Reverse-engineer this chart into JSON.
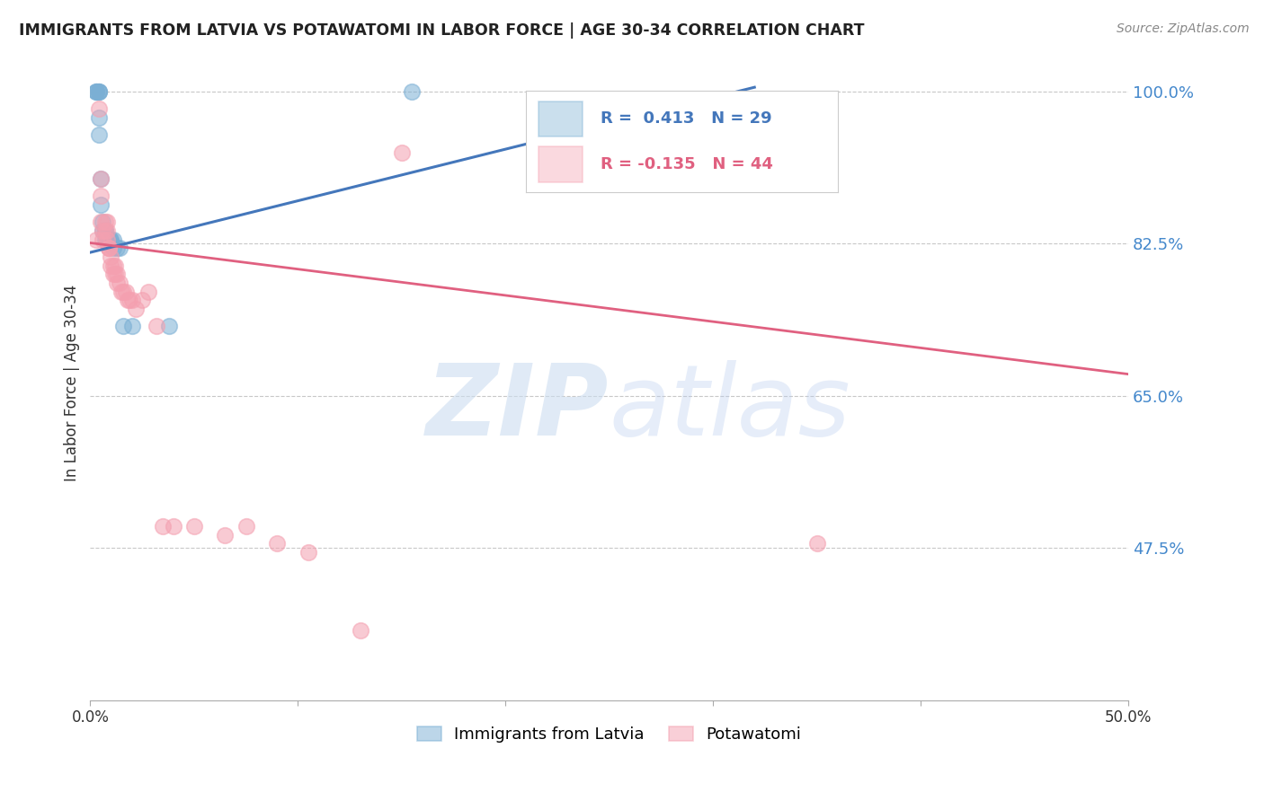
{
  "title": "IMMIGRANTS FROM LATVIA VS POTAWATOMI IN LABOR FORCE | AGE 30-34 CORRELATION CHART",
  "source": "Source: ZipAtlas.com",
  "ylabel": "In Labor Force | Age 30-34",
  "xlim": [
    0.0,
    0.5
  ],
  "ylim": [
    0.3,
    1.03
  ],
  "yticks": [
    0.475,
    0.65,
    0.825,
    1.0
  ],
  "ytick_labels": [
    "47.5%",
    "65.0%",
    "82.5%",
    "100.0%"
  ],
  "xticks": [
    0.0,
    0.1,
    0.2,
    0.3,
    0.4,
    0.5
  ],
  "xtick_labels": [
    "0.0%",
    "",
    "",
    "",
    "",
    "50.0%"
  ],
  "grid_color": "#c8c8c8",
  "background_color": "#ffffff",
  "blue_color": "#7bafd4",
  "pink_color": "#f4a0b0",
  "blue_line_color": "#4477bb",
  "pink_line_color": "#e06080",
  "legend_R_blue": "0.413",
  "legend_N_blue": "29",
  "legend_R_pink": "-0.135",
  "legend_N_pink": "44",
  "blue_scatter_x": [
    0.003,
    0.003,
    0.003,
    0.004,
    0.004,
    0.004,
    0.004,
    0.004,
    0.005,
    0.005,
    0.006,
    0.006,
    0.007,
    0.007,
    0.007,
    0.008,
    0.008,
    0.009,
    0.009,
    0.01,
    0.01,
    0.011,
    0.011,
    0.013,
    0.014,
    0.016,
    0.02,
    0.155,
    0.038
  ],
  "blue_scatter_y": [
    1.0,
    1.0,
    1.0,
    1.0,
    1.0,
    1.0,
    0.97,
    0.95,
    0.9,
    0.87,
    0.85,
    0.84,
    0.84,
    0.84,
    0.83,
    0.83,
    0.83,
    0.83,
    0.83,
    0.83,
    0.83,
    0.83,
    0.82,
    0.82,
    0.82,
    0.73,
    0.73,
    1.0,
    0.73
  ],
  "pink_scatter_x": [
    0.003,
    0.004,
    0.005,
    0.005,
    0.005,
    0.006,
    0.006,
    0.007,
    0.007,
    0.008,
    0.008,
    0.008,
    0.009,
    0.009,
    0.009,
    0.01,
    0.01,
    0.011,
    0.011,
    0.012,
    0.012,
    0.013,
    0.013,
    0.014,
    0.015,
    0.016,
    0.017,
    0.018,
    0.019,
    0.02,
    0.022,
    0.025,
    0.028,
    0.032,
    0.035,
    0.04,
    0.05,
    0.065,
    0.075,
    0.09,
    0.105,
    0.13,
    0.15,
    0.35
  ],
  "pink_scatter_y": [
    0.83,
    0.98,
    0.9,
    0.88,
    0.85,
    0.84,
    0.83,
    0.85,
    0.84,
    0.85,
    0.84,
    0.83,
    0.82,
    0.82,
    0.82,
    0.81,
    0.8,
    0.8,
    0.79,
    0.8,
    0.79,
    0.79,
    0.78,
    0.78,
    0.77,
    0.77,
    0.77,
    0.76,
    0.76,
    0.76,
    0.75,
    0.76,
    0.77,
    0.73,
    0.5,
    0.5,
    0.5,
    0.49,
    0.5,
    0.48,
    0.47,
    0.38,
    0.93,
    0.48
  ],
  "blue_trend_x0": 0.0,
  "blue_trend_x1": 0.32,
  "blue_trend_y0": 0.815,
  "blue_trend_y1": 1.005,
  "pink_trend_x0": 0.0,
  "pink_trend_x1": 0.5,
  "pink_trend_y0": 0.826,
  "pink_trend_y1": 0.675
}
